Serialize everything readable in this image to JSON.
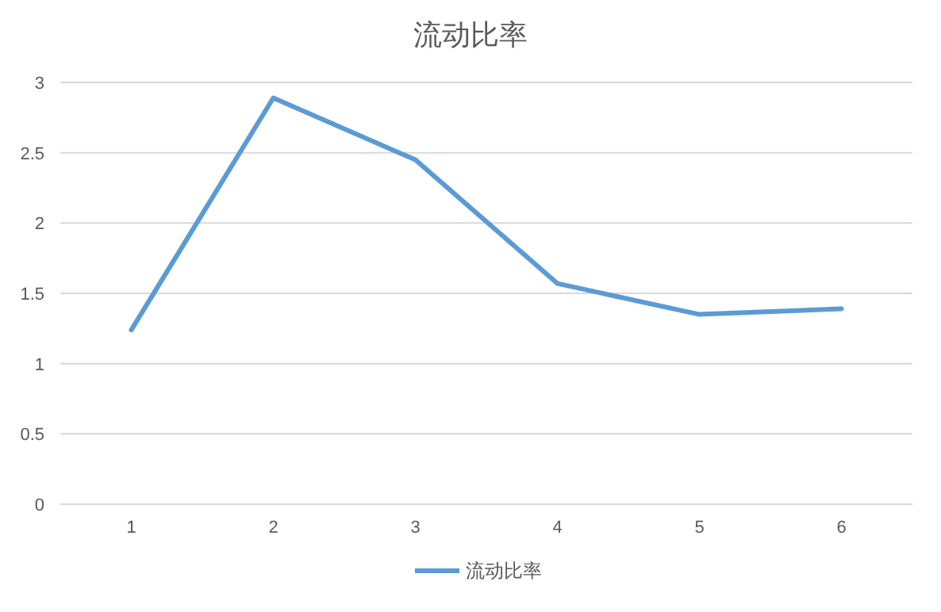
{
  "chart_data": {
    "type": "line",
    "title": "流动比率",
    "categories": [
      "1",
      "2",
      "3",
      "4",
      "5",
      "6"
    ],
    "series": [
      {
        "name": "流动比率",
        "color": "#5b9bd5",
        "values": [
          1.24,
          2.89,
          2.45,
          1.57,
          1.35,
          1.39
        ]
      }
    ],
    "ylim": [
      0,
      3
    ],
    "yticks": [
      0,
      0.5,
      1,
      1.5,
      2,
      2.5,
      3
    ],
    "grid": "y",
    "legend": "bottom",
    "marker": "none",
    "line_style": "solid"
  }
}
